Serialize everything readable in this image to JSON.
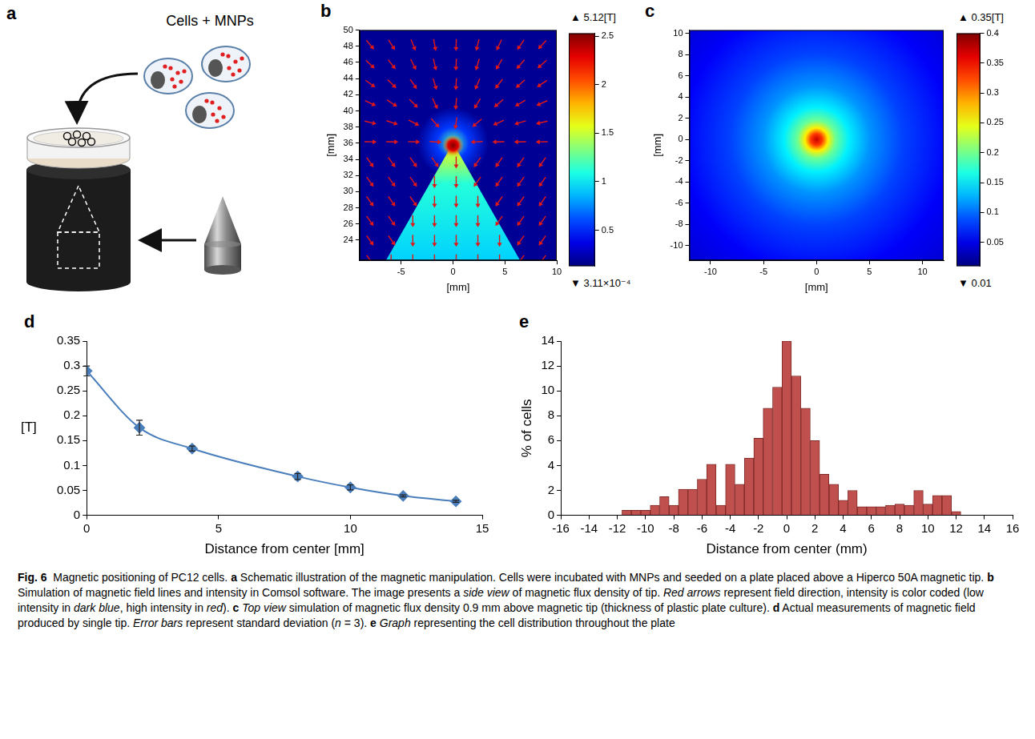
{
  "diagram": {
    "panel": "a",
    "text": "Cells + MNPs"
  },
  "chart_data": [
    {
      "panel": "b",
      "type": "heatmap",
      "x_label": "[mm]",
      "y_label": "[mm]",
      "xlim": [
        -9,
        10
      ],
      "xticks": [
        -5,
        0,
        5,
        10
      ],
      "ylim": [
        21.5,
        50
      ],
      "yticks": [
        24,
        26,
        28,
        30,
        32,
        34,
        36,
        38,
        40,
        42,
        44,
        46,
        48,
        50
      ],
      "colorbar": {
        "range": [
          0.13,
          2.53
        ],
        "ticks": [
          0.5,
          1,
          1.5,
          2,
          2.5
        ],
        "max_label": "▲ 5.12[T]",
        "min_label": "▼ 3.11×10⁻⁴"
      }
    },
    {
      "panel": "c",
      "type": "heatmap",
      "x_label": "[mm]",
      "y_label": "[mm]",
      "xlim": [
        -12,
        12
      ],
      "xticks": [
        -10,
        -5,
        0,
        5,
        10
      ],
      "ylim": [
        -11.4,
        10.3
      ],
      "yticks": [
        -10,
        -8,
        -6,
        -4,
        -2,
        0,
        2,
        4,
        6,
        8,
        10
      ],
      "colorbar": {
        "range": [
          0.01,
          0.4
        ],
        "ticks": [
          0.05,
          0.1,
          0.15,
          0.2,
          0.25,
          0.3,
          0.35,
          0.4
        ],
        "max_label": "▲ 0.35[T]",
        "min_label": "▼ 0.01"
      }
    },
    {
      "panel": "d",
      "type": "line",
      "x_label": "Distance from center [mm]",
      "y_label": "[T]",
      "x": [
        0,
        2,
        4,
        8,
        10,
        12,
        14
      ],
      "values": [
        0.29,
        0.176,
        0.134,
        0.078,
        0.056,
        0.039,
        0.028
      ],
      "errors": [
        0.01,
        0.015,
        0.005,
        0.006,
        0.005,
        0.002,
        0.002
      ],
      "color": "#4a7ebb",
      "marker": "diamond",
      "line_style": "solid",
      "xlim": [
        0,
        15
      ],
      "xticks": [
        0,
        5,
        10,
        15
      ],
      "ylim": [
        0,
        0.35
      ],
      "yticks": [
        0,
        0.05,
        0.1,
        0.15,
        0.2,
        0.25,
        0.3,
        0.35
      ],
      "grid": false
    },
    {
      "panel": "e",
      "type": "histogram",
      "x_label": "Distance from center (mm)",
      "y_label": "% of cells",
      "bins": [
        -11.67,
        -11,
        -10.33,
        -9.67,
        -9,
        -8.33,
        -7.67,
        -7,
        -6.33,
        -5.67,
        -5,
        -4.33,
        -3.67,
        -3,
        -2.33,
        -1.67,
        -1,
        -0.33,
        0.33,
        1,
        1.67,
        2.33,
        3,
        3.67,
        4.33,
        5,
        5.67,
        6.33,
        7,
        7.67,
        8.33,
        9,
        9.67,
        10.33,
        11,
        11.67,
        12.33
      ],
      "values": [
        0.4,
        0.4,
        0.4,
        0.8,
        1.5,
        0.8,
        2.1,
        2.1,
        2.9,
        4.1,
        0.8,
        4.1,
        2.5,
        4.6,
        6.2,
        8.6,
        10.3,
        14.0,
        11.2,
        8.6,
        6.0,
        3.3,
        2.5,
        1.2,
        2.0,
        0.7,
        0.7,
        0.7,
        0.8,
        0.9,
        0.8,
        2.0,
        0.9,
        1.6,
        1.6,
        0.3
      ],
      "color": "#c0504d",
      "xlim": [
        -16,
        16
      ],
      "xticks": [
        -16,
        -14,
        -12,
        -10,
        -8,
        -6,
        -4,
        -2,
        0,
        2,
        4,
        6,
        8,
        10,
        12,
        14,
        16
      ],
      "ylim": [
        0,
        14
      ],
      "yticks": [
        0,
        2,
        4,
        6,
        8,
        10,
        12,
        14
      ],
      "grid": false
    }
  ],
  "caption": [
    {
      "text": "Fig. 6",
      "bold": true
    },
    {
      "text": "  Magnetic positioning of PC12 cells. "
    },
    {
      "text": "a",
      "bold": true
    },
    {
      "text": " Schematic illustration of the magnetic manipulation. Cells were incubated with MNPs and seeded on a plate placed above a Hiperco 50A magnetic tip. "
    },
    {
      "text": "b",
      "bold": true
    },
    {
      "text": " Simulation of magnetic field lines and intensity in Comsol software. The image presents a "
    },
    {
      "text": "side view",
      "italic": true
    },
    {
      "text": " of magnetic flux density of tip. "
    },
    {
      "text": "Red arrows",
      "italic": true
    },
    {
      "text": " represent field direction, intensity is color coded (low intensity in "
    },
    {
      "text": "dark blue",
      "italic": true
    },
    {
      "text": ", high intensity in "
    },
    {
      "text": "red",
      "italic": true
    },
    {
      "text": "). "
    },
    {
      "text": "c",
      "bold": true
    },
    {
      "text": " "
    },
    {
      "text": "Top view",
      "italic": true
    },
    {
      "text": " simulation of magnetic flux density 0.9 mm above magnetic tip (thickness of plastic plate culture). "
    },
    {
      "text": "d",
      "bold": true
    },
    {
      "text": " Actual measurements of magnetic field produced by single tip. "
    },
    {
      "text": "Error bars",
      "italic": true
    },
    {
      "text": " represent standard deviation ("
    },
    {
      "text": "n",
      "italic": true
    },
    {
      "text": " = 3). "
    },
    {
      "text": "e",
      "bold": true
    },
    {
      "text": " "
    },
    {
      "text": "Graph",
      "italic": true
    },
    {
      "text": " representing the cell distribution throughout the plate"
    }
  ]
}
